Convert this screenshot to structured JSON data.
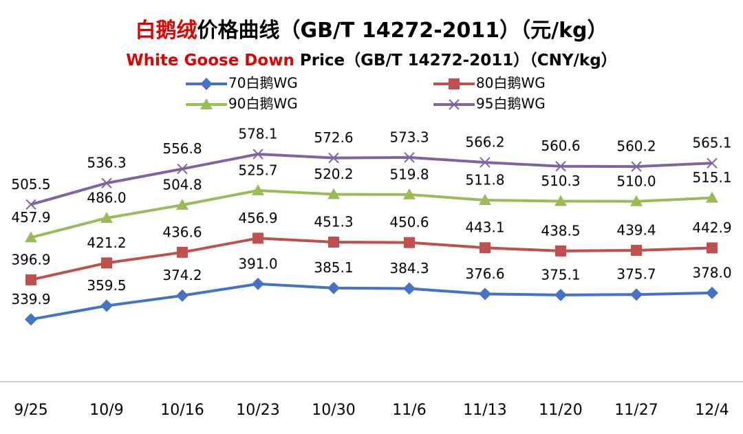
{
  "chart_data": {
    "type": "line",
    "title": [
      "白鹅绒",
      "价格曲线（GB/T 14272-2011）（元/kg）"
    ],
    "subtitle": [
      "White Goose Down",
      " Price（GB/T 14272-2011）（CNY/kg）"
    ],
    "categories": [
      "9/25",
      "10/9",
      "10/16",
      "10/23",
      "10/30",
      "11/6",
      "11/13",
      "11/20",
      "11/27",
      "12/4"
    ],
    "ylim": [
      250,
      600
    ],
    "series": [
      {
        "name": "70白鹅WG",
        "color": "#4472c4",
        "marker": "diamond",
        "values": [
          339.9,
          359.5,
          374.2,
          391.0,
          385.1,
          384.3,
          376.6,
          375.1,
          375.7,
          378.0
        ],
        "value_labels": [
          "339.9",
          "359.5",
          "374.2",
          "391.0",
          "385.1",
          "384.3",
          "376.6",
          "375.1",
          "375.7",
          "378.0"
        ]
      },
      {
        "name": "80白鹅WG",
        "color": "#c0504d",
        "marker": "square",
        "values": [
          396.9,
          421.2,
          436.6,
          456.9,
          451.3,
          450.6,
          443.1,
          438.5,
          439.4,
          442.9
        ]
      },
      {
        "name": "90白鹅WG",
        "color": "#9bbb59",
        "marker": "triangle",
        "values": [
          457.9,
          486.0,
          504.8,
          525.7,
          520.2,
          519.8,
          511.8,
          510.3,
          510.0,
          515.1
        ],
        "value_labels": [
          "457.9",
          "486.0",
          "504.8",
          "525.7",
          "520.2",
          "519.8",
          "511.8",
          "510.3",
          "510.0",
          "515.1"
        ]
      },
      {
        "name": "95白鹅WG",
        "color": "#8064a2",
        "marker": "x",
        "values": [
          505.5,
          536.3,
          556.8,
          578.1,
          572.6,
          573.3,
          566.2,
          560.6,
          560.2,
          565.1
        ]
      }
    ]
  }
}
